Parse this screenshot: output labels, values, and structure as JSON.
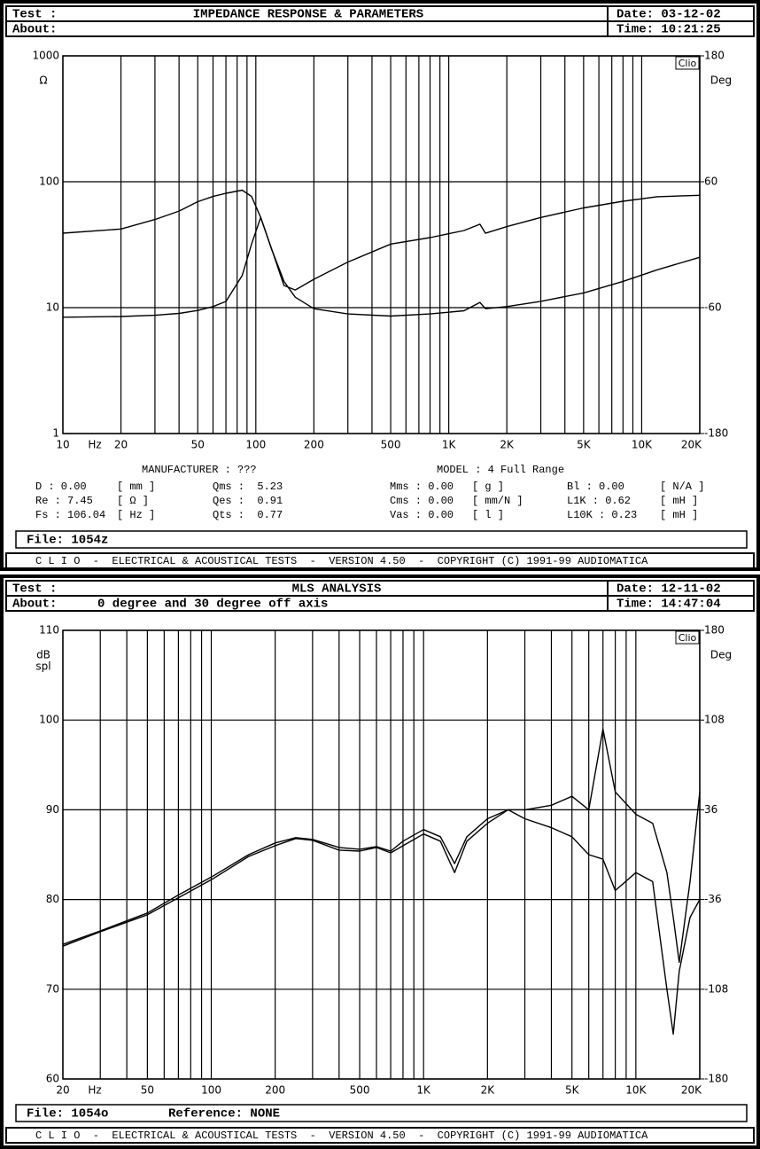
{
  "panels": [
    {
      "test_label": "Test :",
      "title": "IMPEDANCE RESPONSE & PARAMETERS",
      "date": "Date: 03-12-02",
      "about_label": "About:",
      "time": "Time: 10:21:25",
      "manufacturer": "MANUFACTURER : ???",
      "model": "MODEL : 4  Full Range",
      "params": [
        [
          "D : 0.00",
          "[ mm ]",
          "Qms :  5.23",
          "Mms : 0.00",
          "[ g ]",
          "Bl : 0.00",
          "[ N/A ]"
        ],
        [
          "Re : 7.45",
          "[ Ω ]",
          "Qes :  0.91",
          "Cms : 0.00",
          "[ mm/N ]",
          "L1K : 0.62",
          "[ mH ]"
        ],
        [
          "Fs : 106.04",
          "[ Hz ]",
          "Qts :  0.77",
          "Vas : 0.00",
          "[ l ]",
          "L10K : 0.23",
          "[ mH ]"
        ]
      ],
      "file": "File: 1054z",
      "footer": "C L I O  -  ELECTRICAL & ACOUSTICAL TESTS  -  VERSION 4.50  -  COPYRIGHT (C) 1991-99 AUDIOMATICA"
    },
    {
      "test_label": "Test :",
      "title": "MLS ANALYSIS",
      "date": "Date: 12-11-02",
      "about_label": "About:",
      "about": "0 degree and 30 degree off axis",
      "time": "Time: 14:47:04",
      "file": "File: 1054o",
      "reference": "Reference: NONE",
      "footer": "C L I O  -  ELECTRICAL & ACOUSTICAL TESTS  -  VERSION 4.50  -  COPYRIGHT (C) 1991-99 AUDIOMATICA"
    }
  ],
  "chart_data": [
    {
      "type": "line",
      "log_x": true,
      "log_y": true,
      "grid": true,
      "x_label": "Hz",
      "y_label": [
        "Ω"
      ],
      "y2_label": "Deg",
      "badge": "Clio",
      "xlim": [
        10,
        20000
      ],
      "xticks": [
        10,
        20,
        50,
        100,
        200,
        500,
        {
          "value": 1000,
          "label": "1K"
        },
        {
          "value": 2000,
          "label": "2K"
        },
        {
          "value": 5000,
          "label": "5K"
        },
        {
          "value": 10000,
          "label": "10K"
        },
        {
          "value": 20000,
          "label": "20K"
        }
      ],
      "ylim": [
        1,
        1000
      ],
      "yticks": [
        1,
        10,
        100,
        1000
      ],
      "y2lim": [
        -180,
        180
      ],
      "y2ticks": [
        -180,
        -60,
        60,
        180
      ],
      "x": [
        10,
        20,
        30,
        40,
        50,
        60,
        70,
        85,
        95,
        106,
        120,
        140,
        160,
        200,
        300,
        500,
        800,
        1200,
        1450,
        1550,
        2000,
        3000,
        5000,
        8000,
        12000,
        20000
      ],
      "series": [
        {
          "color": "#000000",
          "values": [
            8.4,
            8.5,
            8.7,
            9,
            9.5,
            10.2,
            11.2,
            18,
            32,
            52,
            30,
            15,
            13.8,
            16.8,
            23,
            32,
            36,
            41,
            46,
            39,
            44,
            52,
            62,
            70,
            76,
            78
          ]
        },
        {
          "color": "#000000",
          "axis": "y2",
          "values": [
            11,
            15,
            24,
            32,
            41,
            46,
            49,
            52,
            46,
            26,
            -3,
            -35,
            -50,
            -61,
            -66,
            -68,
            -66,
            -63,
            -55,
            -61,
            -59,
            -54,
            -46,
            -35,
            -24,
            -12
          ]
        }
      ]
    },
    {
      "type": "line",
      "log_x": true,
      "log_y": false,
      "grid": true,
      "x_label": "Hz",
      "y_label": [
        "dB",
        "spl"
      ],
      "y2_label": "Deg",
      "badge": "Clio",
      "xlim": [
        20,
        20000
      ],
      "xticks": [
        20,
        50,
        100,
        200,
        500,
        {
          "value": 1000,
          "label": "1K"
        },
        {
          "value": 2000,
          "label": "2K"
        },
        {
          "value": 5000,
          "label": "5K"
        },
        {
          "value": 10000,
          "label": "10K"
        },
        {
          "value": 20000,
          "label": "20K"
        }
      ],
      "ylim": [
        60,
        110
      ],
      "yticks": [
        60,
        70,
        80,
        90,
        100,
        110
      ],
      "y2lim": [
        -180,
        180
      ],
      "y2ticks": [
        -180,
        -108,
        -36,
        36,
        108,
        180
      ],
      "x": [
        20,
        30,
        50,
        70,
        100,
        150,
        200,
        250,
        300,
        400,
        500,
        600,
        700,
        800,
        1000,
        1200,
        1400,
        1600,
        2000,
        2500,
        3000,
        4000,
        5000,
        6000,
        7000,
        8000,
        10000,
        12000,
        14000,
        15000,
        16000,
        18000,
        20000
      ],
      "series": [
        {
          "color": "#000000",
          "values": [
            75,
            76.5,
            78.5,
            80.5,
            82.5,
            85,
            86.3,
            86.9,
            86.7,
            85.8,
            85.6,
            85.9,
            85.4,
            86.5,
            87.8,
            87,
            84,
            87,
            89,
            90,
            90,
            90.5,
            91.5,
            90,
            99,
            92,
            89.5,
            88.5,
            83,
            78,
            73,
            82,
            92
          ]
        },
        {
          "color": "#000000",
          "values": [
            74.8,
            76.4,
            78.3,
            80.2,
            82.2,
            84.8,
            86,
            86.8,
            86.6,
            85.5,
            85.4,
            85.8,
            85.2,
            86,
            87.3,
            86.5,
            83,
            86.5,
            88.5,
            90,
            89,
            88,
            87,
            85,
            84.5,
            81,
            83,
            82,
            70,
            65,
            72,
            78,
            80
          ]
        }
      ]
    }
  ]
}
